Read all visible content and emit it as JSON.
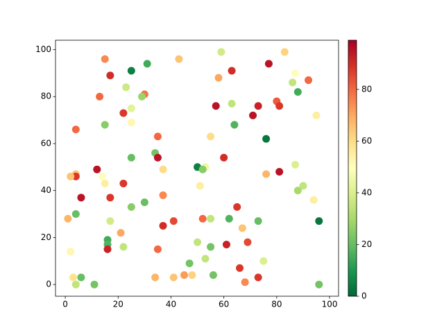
{
  "chart_data": {
    "type": "scatter",
    "x": [
      15,
      25,
      17,
      31,
      43,
      59,
      83,
      63,
      77,
      58,
      87,
      92,
      86,
      88,
      13,
      23,
      30,
      29,
      25,
      22,
      25,
      15,
      4,
      63,
      57,
      73,
      80,
      81,
      71,
      95,
      64,
      55,
      35,
      76,
      34,
      35,
      25,
      60,
      50,
      53,
      52,
      37,
      87,
      12,
      4,
      4,
      2,
      14,
      15,
      22,
      6,
      17,
      51,
      76,
      81,
      90,
      88,
      94,
      37,
      25,
      30,
      4,
      65,
      1,
      17,
      52,
      55,
      62,
      73,
      96,
      41,
      37,
      67,
      21,
      16,
      16,
      16,
      50,
      61,
      69,
      22,
      55,
      35,
      2,
      53,
      47,
      75,
      66,
      3,
      6,
      34,
      41,
      45,
      48,
      56,
      73,
      68,
      4,
      11,
      96
    ],
    "values": [
      96,
      91,
      89,
      94,
      96,
      99,
      99,
      91,
      94,
      88,
      90,
      87,
      86,
      82,
      80,
      84,
      81,
      80,
      75,
      73,
      69,
      68,
      66,
      77,
      76,
      76,
      78,
      76,
      72,
      72,
      68,
      63,
      63,
      62,
      56,
      54,
      54,
      54,
      50,
      50,
      49,
      49,
      51,
      49,
      47,
      46,
      46,
      46,
      43,
      43,
      37,
      37,
      42,
      47,
      48,
      42,
      40,
      36,
      38,
      33,
      35,
      30,
      33,
      28,
      27,
      28,
      28,
      28,
      27,
      27,
      27,
      25,
      24,
      22,
      19,
      17,
      15,
      18,
      17,
      18,
      16,
      16,
      15,
      14,
      11,
      9,
      10,
      7,
      3,
      3,
      3,
      3,
      4,
      4,
      4,
      3,
      1,
      0,
      0,
      0
    ],
    "color_values": [
      75,
      5,
      90,
      15,
      65,
      38,
      62,
      90,
      95,
      70,
      50,
      80,
      35,
      15,
      80,
      37,
      78,
      28,
      42,
      88,
      52,
      25,
      80,
      35,
      95,
      92,
      82,
      88,
      95,
      55,
      17,
      60,
      80,
      3,
      22,
      95,
      20,
      90,
      5,
      45,
      25,
      60,
      40,
      95,
      65,
      88,
      65,
      50,
      55,
      88,
      95,
      88,
      55,
      68,
      95,
      35,
      30,
      55,
      75,
      25,
      20,
      20,
      88,
      68,
      38,
      80,
      35,
      17,
      20,
      3,
      85,
      90,
      65,
      70,
      15,
      17,
      92,
      35,
      92,
      85,
      35,
      22,
      80,
      52,
      35,
      22,
      40,
      88,
      58,
      20,
      68,
      65,
      72,
      62,
      22,
      88,
      75,
      35,
      22,
      22
    ],
    "colormap": [
      "#006837",
      "#1a9850",
      "#66bd63",
      "#a6d96a",
      "#d9ef8b",
      "#ffffbf",
      "#fee08b",
      "#fdae61",
      "#f46d43",
      "#d73027",
      "#a50026"
    ],
    "xlim": [
      -3.7,
      103.4
    ],
    "ylim": [
      -5,
      104
    ],
    "xticks": [
      0,
      20,
      40,
      60,
      80,
      100
    ],
    "yticks": [
      0,
      20,
      40,
      60,
      80,
      100
    ],
    "clim": [
      0,
      99
    ],
    "cticks": [
      0,
      20,
      40,
      60,
      80
    ]
  }
}
